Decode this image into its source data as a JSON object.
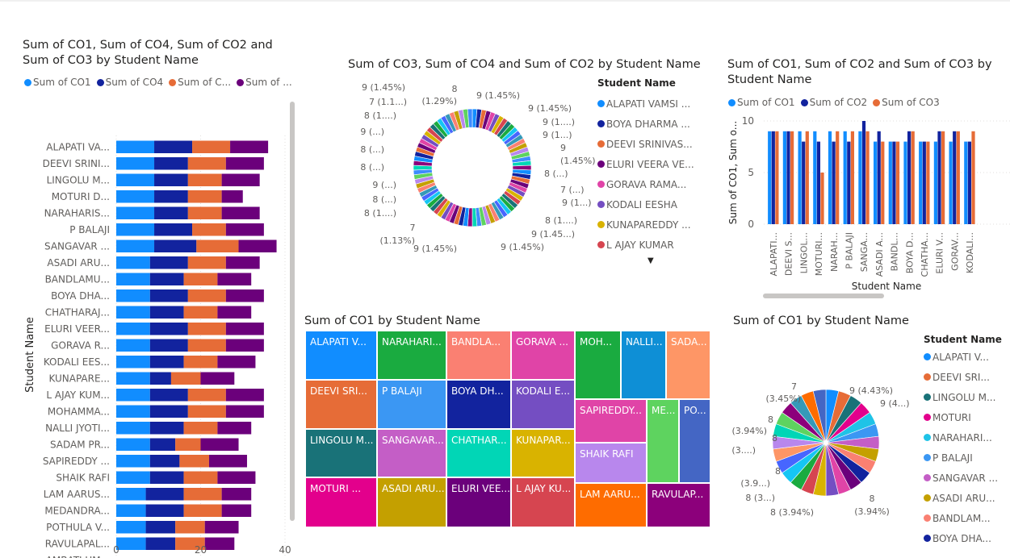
{
  "colors": {
    "co1": "#118dff",
    "co4": "#12239e",
    "co2": "#e66c37",
    "co3": "#6b007b"
  },
  "bar_visual": {
    "title_line1": "Sum of CO1, Sum of CO4, Sum of CO2 and",
    "title_line2": "Sum of CO3 by Student Name",
    "legend": [
      "Sum of CO1",
      "Sum of CO4",
      "Sum of C...",
      "Sum of ..."
    ],
    "ylabel": "Student Name",
    "xticks": [
      "0",
      "20",
      "40"
    ]
  },
  "donut_visual": {
    "title": "Sum of CO3, Sum of CO4 and Sum of CO2 by Student Name",
    "legend_title": "Student Name",
    "legend": [
      {
        "label": "ALAPATI  VAMSI ...",
        "color": "#118dff"
      },
      {
        "label": "BOYA  DHARMA ...",
        "color": "#12239e"
      },
      {
        "label": "DEEVI  SRINIVAS...",
        "color": "#e66c37"
      },
      {
        "label": "ELURI VEERA  VE...",
        "color": "#6b007b"
      },
      {
        "label": "GORAVA   RAMA...",
        "color": "#e044a7"
      },
      {
        "label": "KODALI  EESHA",
        "color": "#744ec2"
      },
      {
        "label": "KUNAPAREDDY ...",
        "color": "#d9b300"
      },
      {
        "label": "L AJAY KUMAR",
        "color": "#d64550"
      }
    ],
    "labels": [
      "8",
      "9 (1.45%)",
      "9 (1.45%)",
      "9 (1....)",
      "9 (1...)",
      "9",
      "(1.45%)",
      "8 (...)",
      "7 (...)",
      "9 (1...)",
      "8 (1....)",
      "9 (1.45...)",
      "9 (1.45%)",
      "9 (1.45%)",
      "(1.13%)",
      "7",
      "8 (1....)",
      "8 (...)",
      "9 (...)",
      "8 (...)",
      "8 (...)",
      "9 (...)",
      "8 (1....)",
      "7 (1.1...)",
      "9 (1.45%)",
      "(1.29%)"
    ]
  },
  "col_visual": {
    "title_line1": "Sum of CO1, Sum of CO2 and Sum of CO3 by",
    "title_line2": "Student Name",
    "legend": [
      "Sum of CO1",
      "Sum of CO2",
      "Sum of CO3"
    ],
    "ylabel": "Sum of CO1, Sum o...",
    "xlabel": "Student Name",
    "yticks": [
      "0",
      "5",
      "10"
    ]
  },
  "treemap_visual": {
    "title": "Sum of CO1 by Student Name",
    "cells": [
      {
        "label": "ALAPATI V...",
        "color": "#118dff"
      },
      {
        "label": "NARAHARI...",
        "color": "#1aab40"
      },
      {
        "label": "BANDLA...",
        "color": "#fa8072"
      },
      {
        "label": "GORAVA ...",
        "color": "#e044a7"
      },
      {
        "label": "MOH...",
        "color": "#1aab40"
      },
      {
        "label": "NALLI...",
        "color": "#0e8fd6"
      },
      {
        "label": "SADA...",
        "color": "#fe9666"
      },
      {
        "label": "DEEVI SRI...",
        "color": "#e66c37"
      },
      {
        "label": "P BALAJI",
        "color": "#3b97f3"
      },
      {
        "label": "BOYA DH...",
        "color": "#12239e"
      },
      {
        "label": "KODALI E...",
        "color": "#744ec2"
      },
      {
        "label": "SAPIREDDY...",
        "color": "#e044a7"
      },
      {
        "label": "ME...",
        "color": "#5ed35f"
      },
      {
        "label": "PO...",
        "color": "#4466c4"
      },
      {
        "label": "LINGOLU M...",
        "color": "#197278"
      },
      {
        "label": "SANGAVAR...",
        "color": "#c45ec6"
      },
      {
        "label": "CHATHAR...",
        "color": "#01d6b6"
      },
      {
        "label": "KUNAPAR...",
        "color": "#d9b300"
      },
      {
        "label": "SHAIK RAFI",
        "color": "#b887ed"
      },
      {
        "label": "MOTURI ...",
        "color": "#e3008c"
      },
      {
        "label": "ASADI ARU...",
        "color": "#c4a000"
      },
      {
        "label": "ELURI VEE...",
        "color": "#6b007b"
      },
      {
        "label": "L AJAY KU...",
        "color": "#d64550"
      },
      {
        "label": "LAM AARU...",
        "color": "#fe6c00"
      },
      {
        "label": "RAVULAP...",
        "color": "#8c007b"
      }
    ]
  },
  "pie_visual": {
    "title": "Sum of CO1 by Student Name",
    "legend_title": "Student Name",
    "legend": [
      {
        "label": "ALAPATI  V...",
        "color": "#118dff"
      },
      {
        "label": "DEEVI  SRI...",
        "color": "#e66c37"
      },
      {
        "label": "LINGOLU M...",
        "color": "#197278"
      },
      {
        "label": "MOTURI",
        "color": "#e3008c"
      },
      {
        "label": "NARAHARI...",
        "color": "#1fc3e7"
      },
      {
        "label": "P  BALAJI",
        "color": "#3b97f3"
      },
      {
        "label": "SANGAVAR ...",
        "color": "#c45ec6"
      },
      {
        "label": "ASADI ARU...",
        "color": "#c4a000"
      },
      {
        "label": "BANDLAM...",
        "color": "#fa8072"
      },
      {
        "label": "BOYA  DHA...",
        "color": "#12239e"
      }
    ],
    "labels": [
      "9 (4.43%)",
      "9 (4...)",
      "8",
      "(3.94%)",
      "8 (3.94%)",
      "8 (3...)",
      "8",
      "(3.9...)",
      "8",
      "(3....)",
      "8",
      "(3.94%)",
      "(3.45%)",
      "7"
    ]
  },
  "chart_data": [
    {
      "type": "bar",
      "orientation": "horizontal",
      "stacked": true,
      "title": "Sum of CO1, Sum of CO4, Sum of CO2 and Sum of CO3 by Student Name",
      "ylabel": "Student Name",
      "xlim": [
        0,
        40
      ],
      "categories": [
        "ALAPATI VA...",
        "DEEVI SRINI...",
        "LINGOLU M...",
        "MOTURI D...",
        "NARAHARIS...",
        "P BALAJI",
        "SANGAVAR ...",
        "ASADI ARU...",
        "BANDLAMU...",
        "BOYA DHA...",
        "CHATHARAJ...",
        "ELURI VEER...",
        "GORAVA R...",
        "KODALI EES...",
        "KUNAPARE...",
        "L AJAY KUM...",
        "MOHAMMA...",
        "NALLI JYOTI...",
        "SADAM PR...",
        "SAPIREDDY ...",
        "SHAIK RAFI",
        "LAM AARUS...",
        "MEDANDRA...",
        "POTHULA V...",
        "RAVULAPAL...",
        "AMBATI UM..."
      ],
      "series": [
        {
          "name": "Sum of CO1",
          "values": [
            9,
            9,
            9,
            9,
            9,
            9,
            9,
            8,
            8,
            8,
            8,
            8,
            8,
            8,
            8,
            8,
            8,
            8,
            8,
            8,
            8,
            7,
            7,
            7,
            7,
            0
          ]
        },
        {
          "name": "Sum of CO4",
          "values": [
            9,
            8,
            8,
            8,
            8,
            9,
            10,
            9,
            8,
            9,
            8,
            9,
            9,
            8,
            5,
            9,
            9,
            8,
            6,
            7,
            8,
            9,
            9,
            7,
            7,
            0
          ]
        },
        {
          "name": "Sum of C...",
          "values": [
            9,
            9,
            8,
            8,
            8,
            8,
            10,
            9,
            8,
            9,
            8,
            9,
            9,
            8,
            7,
            9,
            9,
            8,
            6,
            7,
            8,
            9,
            9,
            7,
            7,
            0
          ]
        },
        {
          "name": "Sum of ...",
          "values": [
            9,
            9,
            9,
            5,
            9,
            9,
            9,
            8,
            8,
            9,
            8,
            9,
            9,
            9,
            8,
            9,
            9,
            8,
            9,
            9,
            9,
            7,
            7,
            8,
            7,
            0
          ]
        }
      ]
    },
    {
      "type": "pie",
      "donut": true,
      "title": "Sum of CO3, Sum of CO4 and Sum of CO2 by Student Name",
      "slice_count": 78,
      "colors": [
        "#118dff",
        "#12239e",
        "#e66c37",
        "#6b007b",
        "#e044a7",
        "#744ec2",
        "#d9b300",
        "#d64550",
        "#197278",
        "#1aab40",
        "#15c6f4",
        "#4766ff",
        "#3599b8",
        "#fa8072",
        "#c4a000",
        "#b887ed",
        "#5ed35f",
        "#3d8bff",
        "#01d6b6",
        "#8c007b"
      ]
    },
    {
      "type": "bar",
      "orientation": "vertical",
      "title": "Sum of CO1, Sum of CO2 and Sum of CO3 by Student Name",
      "xlabel": "Student Name",
      "ylabel": "Sum of CO1, Sum o...",
      "ylim": [
        0,
        10
      ],
      "categories": [
        "ALAPATI...",
        "DEEVI S...",
        "LINGOL...",
        "MOTURI...",
        "NARAH...",
        "P BALAJI",
        "SANGA...",
        "ASADI A...",
        "BANDL...",
        "BOYA D...",
        "CHATHA...",
        "ELURI V...",
        "GORAV...",
        "KODALI..."
      ],
      "series": [
        {
          "name": "Sum of CO1",
          "values": [
            9,
            9,
            9,
            9,
            9,
            9,
            9,
            8,
            8,
            8,
            8,
            8,
            8,
            8
          ]
        },
        {
          "name": "Sum of CO2",
          "values": [
            9,
            9,
            8,
            8,
            8,
            8,
            10,
            9,
            8,
            9,
            8,
            9,
            9,
            8
          ]
        },
        {
          "name": "Sum of CO3",
          "values": [
            9,
            9,
            9,
            5,
            9,
            9,
            9,
            8,
            8,
            9,
            8,
            9,
            9,
            9
          ]
        }
      ]
    },
    {
      "type": "treemap",
      "title": "Sum of CO1 by Student Name"
    },
    {
      "type": "pie",
      "title": "Sum of CO1 by Student Name",
      "slice_count": 26,
      "colors": [
        "#118dff",
        "#e66c37",
        "#197278",
        "#e3008c",
        "#1fc3e7",
        "#3b97f3",
        "#c45ec6",
        "#c4a000",
        "#fa8072",
        "#12239e",
        "#6b007b",
        "#e044a7",
        "#744ec2",
        "#d9b300",
        "#d64550",
        "#1aab40",
        "#15c6f4",
        "#4766ff",
        "#fe9666",
        "#b887ed",
        "#01d6b6",
        "#5ed35f",
        "#8c007b",
        "#3599b8",
        "#fe6c00",
        "#4466c4"
      ]
    }
  ]
}
